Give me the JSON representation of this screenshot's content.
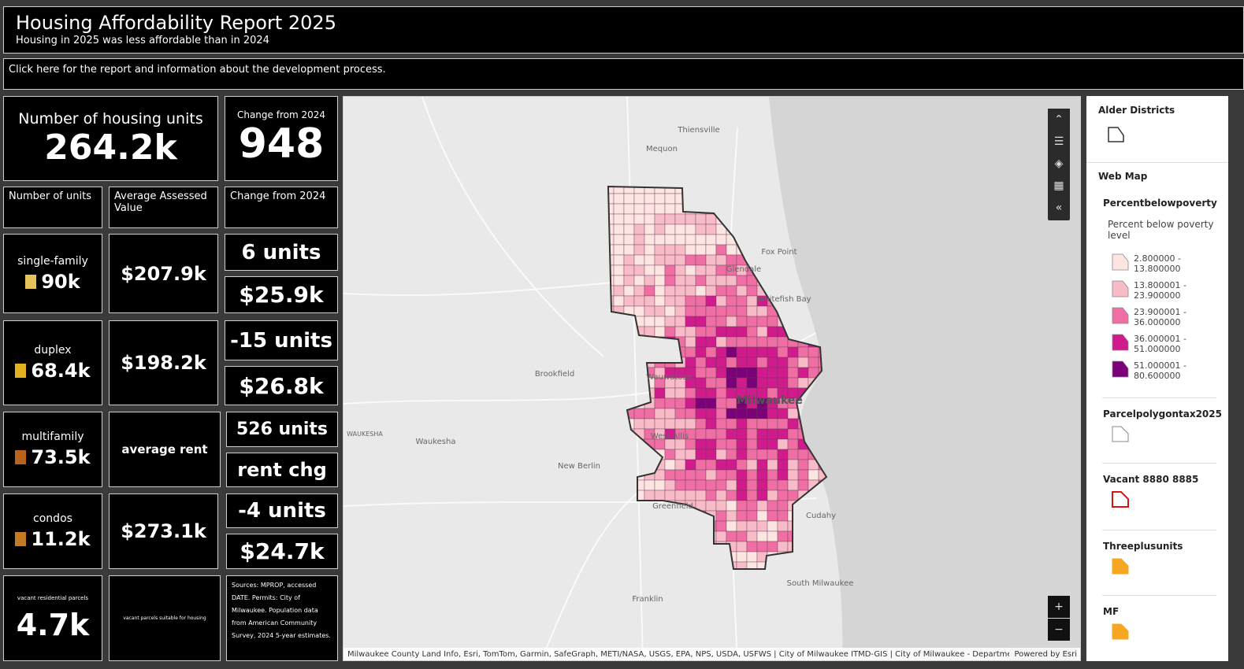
{
  "header": {
    "title": "Housing Affordability Report 2025",
    "subtitle": "Housing in 2025 was less affordable than in 2024"
  },
  "link": "Click here for the report and information about the development process.",
  "summary": {
    "units_label": "Number of housing units",
    "units_value": "264.2k",
    "change_label": "Change from 2024",
    "change_value": "948"
  },
  "column_headers": [
    "Number of units",
    "Average Assessed Value",
    "Change from 2024"
  ],
  "rows": [
    {
      "type": "single-family",
      "units": "90k",
      "value": "$207.9k",
      "unit_change": "6 units",
      "value_change": "$25.9k"
    },
    {
      "type": "duplex",
      "units": "68.4k",
      "value": "$198.2k",
      "unit_change": "-15 units",
      "value_change": "$26.8k"
    },
    {
      "type": "multifamily",
      "units": "73.5k",
      "value": "average rent",
      "unit_change": "526 units",
      "value_change": "rent chg"
    },
    {
      "type": "condos",
      "units": "11.2k",
      "value": "$273.1k",
      "unit_change": "-4 units",
      "value_change": "$24.7k"
    }
  ],
  "vacant": {
    "label": "vacant residential parcels",
    "value": "4.7k",
    "note": "vacant parcels suitable for housing"
  },
  "sources": "Sources: MPROP, accessed DATE. Permits: City of Milwaukee. Population data from American Community Survey, 2024 5-year estimates.",
  "map": {
    "places": [
      "Thiensville",
      "Mequon",
      "Fox Point",
      "Glendale",
      "Whitefish Bay",
      "Brookfield",
      "Wauwatosa",
      "Milwaukee",
      "West Allis",
      "Waukesha",
      "WAUKESHA",
      "New Berlin",
      "Greenfield",
      "Cudahy",
      "South Milwaukee",
      "Franklin"
    ],
    "attribution": "Milwaukee County Land Info, Esri, TomTom, Garmin, SafeGraph, METI/NASA, USGS, EPA, NPS, USDA, USFWS | City of Milwaukee ITMD-GIS | City of Milwaukee - Departmen...",
    "powered_by": "Powered by Esri"
  },
  "legend": {
    "alder": "Alder Districts",
    "web_map": "Web Map",
    "poverty_layer": "Percentbelowpoverty",
    "poverty_field": "Percent below poverty level",
    "classes": [
      "2.800000 - 13.800000",
      "13.800001 - 23.900000",
      "23.900001 - 36.000000",
      "36.000001 - 51.000000",
      "51.000001 - 80.600000"
    ],
    "layers": [
      "Parcelpolygontax2025",
      "Vacant 8880 8885",
      "Threeplusunits",
      "MF"
    ]
  }
}
